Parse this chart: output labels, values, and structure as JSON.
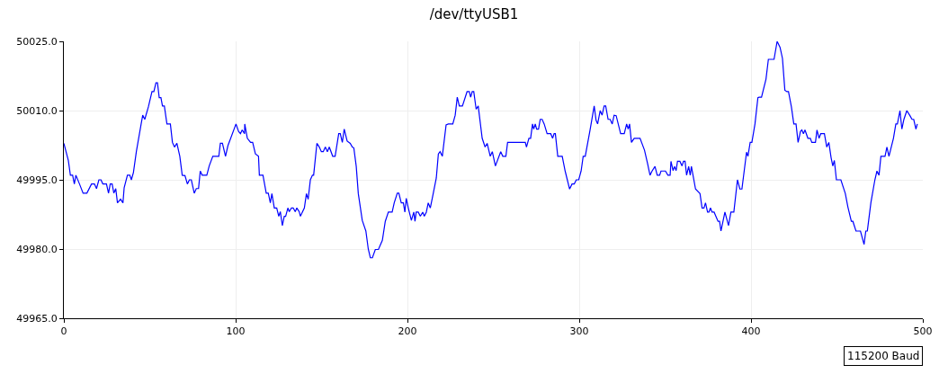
{
  "chart_data": {
    "type": "line",
    "title": "/dev/ttyUSB1",
    "annotations": [
      "115200 Baud"
    ],
    "xlim": [
      0,
      500
    ],
    "xticks": [
      0,
      100,
      200,
      300,
      400,
      500
    ],
    "ylim": [
      49965,
      50025
    ],
    "yticks": [
      {
        "value": 49965,
        "label": "49965.0"
      },
      {
        "value": 49980,
        "label": "49980.0"
      },
      {
        "value": 49995,
        "label": "49995.0"
      },
      {
        "value": 50010,
        "label": "50010.0"
      },
      {
        "value": 50025,
        "label": "50025.0"
      }
    ],
    "grid": true,
    "marker": "none",
    "line_style": "solid",
    "series": [
      {
        "color": "#0000ff",
        "x": [
          0,
          2.6,
          3.8,
          5.1,
          6.1,
          7.0,
          9.1,
          11.2,
          13.4,
          16.1,
          17.8,
          19,
          20.4,
          21.6,
          22.7,
          24.8,
          26,
          27,
          28.1,
          29.1,
          30.2,
          31.2,
          33,
          34.4,
          35.1,
          37,
          38.4,
          39.3,
          40.5,
          42.2,
          44.9,
          45.9,
          47.1,
          49.2,
          51.3,
          52.4,
          53.6,
          54.5,
          55.5,
          56.5,
          57.4,
          58.5,
          60,
          62,
          63.2,
          64.4,
          65.8,
          67.5,
          68.9,
          70.5,
          71.9,
          73.1,
          74.2,
          75.9,
          77.1,
          78.4,
          79.4,
          80.5,
          83.2,
          84.6,
          86.7,
          90.2,
          91.1,
          92.3,
          94.1,
          95.5,
          100.2,
          101.7,
          102.8,
          103.8,
          105.2,
          105.3,
          106.8,
          108.7,
          109.9,
          111.5,
          113.3,
          113.8,
          115.9,
          117.8,
          119,
          120.2,
          121.1,
          122.5,
          123.9,
          125.1,
          126,
          127.2,
          128.3,
          129.1,
          130.4,
          131.2,
          132.5,
          133.5,
          134.7,
          135.6,
          137,
          137.7,
          140,
          141.2,
          142.2,
          143.5,
          144.7,
          145.4,
          147.3,
          148.7,
          149.9,
          151,
          152.2,
          153.4,
          154.5,
          156.5,
          157.9,
          160,
          160.9,
          162.1,
          163.2,
          164.9,
          166.7,
          167.9,
          168.8,
          170.2,
          171.4,
          173.7,
          175.8,
          177.2,
          178.4,
          179.6,
          181.3,
          183.1,
          185.4,
          187.1,
          188.9,
          191.1,
          192.3,
          194.1,
          195,
          196.4,
          197.6,
          198.5,
          199.3,
          200.5,
          202.3,
          203.7,
          204.4,
          205.1,
          206.3,
          207.5,
          208.9,
          209.8,
          211,
          212.1,
          213.3,
          215,
          216.8,
          218,
          219,
          220.3,
          222.5,
          223.8,
          226.4,
          227.8,
          229,
          230.2,
          232,
          234.7,
          236,
          236.8,
          237.7,
          238.6,
          240,
          241.2,
          243.5,
          245.2,
          246.4,
          248.2,
          249.4,
          251.2,
          254.3,
          255.5,
          257.3,
          258.3,
          268.6,
          269.3,
          270.7,
          271.7,
          272.8,
          273.5,
          274.4,
          275.2,
          276.3,
          277.3,
          278.4,
          279.6,
          281.3,
          283.4,
          284.5,
          285.4,
          286.1,
          287.5,
          290.1,
          291.8,
          294.4,
          295.8,
          297.1,
          298.3,
          299.7,
          301.1,
          302.3,
          303.5,
          306.3,
          308.7,
          309.8,
          310.7,
          312.2,
          313.3,
          314.5,
          315.4,
          316.8,
          318,
          319.2,
          320.3,
          321.5,
          324.1,
          326.2,
          327.6,
          328.5,
          329.3,
          330.4,
          332,
          334.2,
          335.4,
          338,
          339.8,
          341.2,
          342.4,
          344.1,
          345.4,
          346.8,
          347.6,
          350.2,
          351.6,
          352.9,
          353.4,
          354.6,
          355.5,
          356.4,
          357.2,
          358.6,
          359.8,
          360.7,
          361.6,
          362.5,
          363.7,
          364.6,
          365.3,
          367.7,
          370.3,
          371.5,
          372.6,
          373.5,
          374.7,
          375.5,
          376.4,
          377.3,
          378.5,
          380.8,
          381.7,
          382.5,
          384.8,
          386.9,
          388.3,
          390,
          392.1,
          393.5,
          394.7,
          397.4,
          398.2,
          399.5,
          400.5,
          402.3,
          404,
          404.7,
          406.1,
          408.7,
          410.1,
          413.4,
          415.2,
          416.9,
          418.3,
          419.7,
          420.9,
          421.8,
          423.5,
          424.9,
          426.2,
          427.4,
          428.8,
          429.6,
          430.5,
          431.4,
          433.1,
          434.5,
          435.4,
          437.5,
          438.4,
          439.6,
          440.6,
          442.7,
          444.1,
          445.3,
          446.6,
          447.6,
          448.5,
          449.7,
          452.3,
          454.9,
          456.4,
          458.4,
          459.3,
          461.1,
          463.7,
          465.8,
          466.8,
          467.7,
          469.8,
          472.1,
          473.3,
          474.5,
          475.6,
          478,
          479.1,
          480.3,
          482.9,
          484.3,
          485.2,
          486.7,
          487.8,
          489,
          490.7,
          492.5,
          493.7,
          494.7,
          496,
          496.8
        ],
        "values": [
          50002.9,
          49999.2,
          49996,
          49996,
          49994.1,
          49996,
          49994.1,
          49992.1,
          49992.1,
          49994.1,
          49994.1,
          49993.1,
          49995,
          49995,
          49994.1,
          49994.1,
          49992.1,
          49994.1,
          49994.1,
          49992.1,
          49993.1,
          49990,
          49990.8,
          49990,
          49993.3,
          49996,
          49996,
          49995,
          49996.6,
          50001.1,
          50006.9,
          50009,
          50008.1,
          50010.8,
          50014.1,
          50014.1,
          50016,
          50016,
          50012.8,
          50012.8,
          50011,
          50011,
          50007.1,
          50007.1,
          50003.1,
          50002.1,
          50002.9,
          50000.1,
          49996,
          49995.9,
          49994.1,
          49995,
          49995,
          49992.1,
          49993.1,
          49993.1,
          49996.9,
          49996,
          49996,
          49998,
          50000.1,
          50000.1,
          50002.9,
          50002.9,
          50000.1,
          50002.4,
          50007.1,
          50005.5,
          50005,
          50005.8,
          50005,
          50007.1,
          50004,
          50003.1,
          50003.1,
          50000.6,
          50000.1,
          49996,
          49996,
          49992.1,
          49992.1,
          49990,
          49992,
          49988.9,
          49988.9,
          49987.1,
          49988.1,
          49985.1,
          49987.1,
          49987.1,
          49988.9,
          49988.1,
          49988.9,
          49988.9,
          49988.1,
          49988.9,
          49988.1,
          49987.1,
          49988.9,
          49992,
          49990.8,
          49995,
          49996,
          49996,
          50002.9,
          50002.1,
          50001.1,
          50001.1,
          50002.1,
          50001.1,
          50002.1,
          50000.1,
          50000.1,
          50005,
          50005,
          50003.1,
          50006,
          50003.4,
          50002.9,
          50002.1,
          50001.9,
          49997.9,
          49992,
          49986.2,
          49983.9,
          49980,
          49978.1,
          49978.1,
          49979.9,
          49979.9,
          49981.9,
          49986,
          49988,
          49988,
          49990,
          49992.1,
          49992.1,
          49990,
          49990,
          49988,
          49991,
          49988.9,
          49986.2,
          49988,
          49986,
          49988,
          49988,
          49987.1,
          49988,
          49987.1,
          49988,
          49990,
          49988.9,
          49992,
          49995.4,
          50000.6,
          50001.1,
          50000.1,
          50006.9,
          50007.1,
          50007.1,
          50009,
          50012.9,
          50011,
          50011,
          50014.1,
          50014.1,
          50012.9,
          50014.1,
          50014.1,
          50010.3,
          50011,
          50004,
          50002.1,
          50002.9,
          50000.1,
          50001.1,
          49998,
          50001.1,
          50000.1,
          50000.1,
          50003.1,
          50003.1,
          50002.1,
          50004,
          50004,
          50007.1,
          50006,
          50007.1,
          50006,
          50006,
          50008.1,
          50008.1,
          50007.1,
          50005,
          50005,
          50004,
          50005,
          50005,
          50000.1,
          50000.1,
          49996.9,
          49993,
          49994.1,
          49994.1,
          49995,
          49995,
          49996.9,
          50000.1,
          50000.1,
          50005.8,
          50011,
          50007.9,
          50007.1,
          50010,
          50009,
          50011,
          50011,
          50008.1,
          50008.1,
          50007.1,
          50009,
          50008.9,
          50005,
          50005,
          50007.1,
          50006,
          50007.1,
          50003.1,
          50004,
          50004,
          50004,
          50001.4,
          49998.5,
          49996,
          49996.9,
          49997.9,
          49996,
          49996,
          49996.9,
          49996.9,
          49996,
          49996,
          49999,
          49997,
          49997.9,
          49997,
          49999,
          49999,
          49998,
          49999,
          49999,
          49996,
          49997.9,
          49996,
          49997.9,
          49993,
          49992,
          49988.9,
          49988.9,
          49990,
          49988,
          49988,
          49988.9,
          49988,
          49988,
          49986,
          49986,
          49983.9,
          49988,
          49985.1,
          49988,
          49988,
          49995,
          49993,
          49993,
          50001,
          50000.1,
          50003.1,
          50003.1,
          50007.1,
          50012.8,
          50012.9,
          50012.9,
          50016.8,
          50021.1,
          50021.1,
          50025,
          50023.7,
          50021.3,
          50014.4,
          50014.1,
          50014.1,
          50010.8,
          50007.1,
          50007.1,
          50003.1,
          50005.5,
          50005.8,
          50005,
          50005.8,
          50004,
          50004,
          50003.1,
          50003.1,
          50005.8,
          50004,
          50005,
          50005,
          50002.1,
          50003.1,
          49999.8,
          49998,
          49999.2,
          49995,
          49995,
          49992,
          49989.1,
          49986,
          49986,
          49983.9,
          49983.9,
          49981,
          49983.9,
          49983.9,
          49990.1,
          49995,
          49996.9,
          49996,
          50000.1,
          50000.1,
          50002.1,
          50000.1,
          50004,
          50007.1,
          50007.1,
          50010,
          50006,
          50008.1,
          50010,
          50008.9,
          50008.1,
          50008.1,
          50006,
          50007.1
        ]
      }
    ]
  }
}
